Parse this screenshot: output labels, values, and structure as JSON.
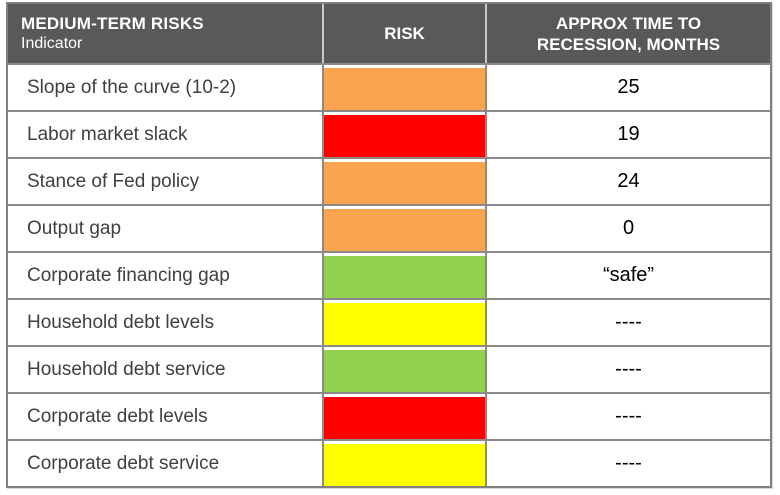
{
  "header": {
    "title": "MEDIUM-TERM RISKS",
    "subtitle": "Indicator",
    "risk_col": "RISK",
    "time_col_line1": "APPROX TIME TO",
    "time_col_line2": "RECESSION, MONTHS"
  },
  "chart_data": {
    "type": "table",
    "title": "MEDIUM-TERM RISKS",
    "columns": [
      "Indicator",
      "RISK",
      "APPROX TIME TO RECESSION, MONTHS"
    ],
    "rows": [
      {
        "indicator": "Slope of the curve (10-2)",
        "risk": "orange",
        "time": "25"
      },
      {
        "indicator": "Labor market slack",
        "risk": "red",
        "time": "19"
      },
      {
        "indicator": "Stance of Fed policy",
        "risk": "orange",
        "time": "24"
      },
      {
        "indicator": "Output gap",
        "risk": "orange",
        "time": "0"
      },
      {
        "indicator": "Corporate financing gap",
        "risk": "green",
        "time": "“safe”"
      },
      {
        "indicator": "Household debt levels",
        "risk": "yellow",
        "time": "----"
      },
      {
        "indicator": "Household debt service",
        "risk": "green",
        "time": "----"
      },
      {
        "indicator": "Corporate debt levels",
        "risk": "red",
        "time": "----"
      },
      {
        "indicator": "Corporate debt service",
        "risk": "yellow",
        "time": "----"
      }
    ]
  },
  "colors": {
    "header_bg": "#595959",
    "header_text": "#FFFFFF",
    "outer_border": "#808080",
    "grid_line": "#8A8A8A",
    "indicator_text": "#404040",
    "value_text": "#000000",
    "risk_orange": "#FAA452",
    "risk_red": "#FF0000",
    "risk_green": "#92D050",
    "risk_yellow": "#FFFF00"
  }
}
